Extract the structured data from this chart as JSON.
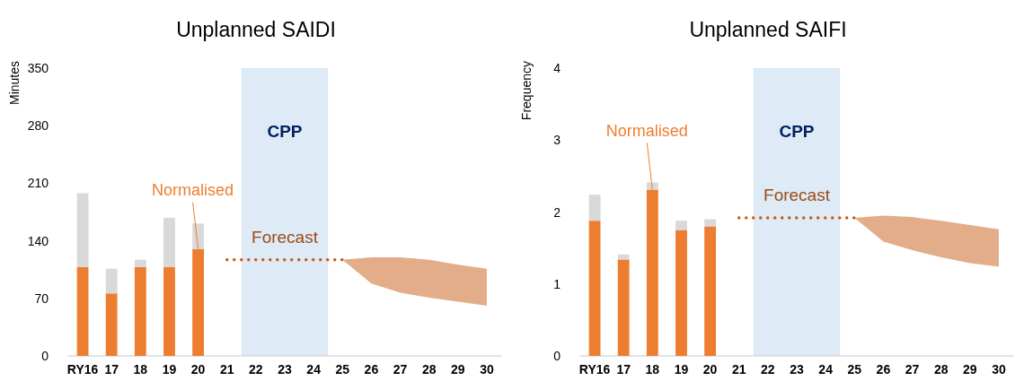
{
  "chart_data": [
    {
      "type": "bar",
      "title": "Unplanned SAIDI",
      "ylabel": "Minutes",
      "categories": [
        "RY16",
        "17",
        "18",
        "19",
        "20",
        "21",
        "22",
        "23",
        "24",
        "25",
        "26",
        "27",
        "28",
        "29",
        "30"
      ],
      "stacked": true,
      "ylim": [
        0,
        350
      ],
      "yticks": [
        0,
        70,
        140,
        210,
        280,
        350
      ],
      "grid": false,
      "series": [
        {
          "color": "#ed7d31",
          "values": [
            108,
            76,
            108,
            108,
            130,
            null,
            null,
            null,
            null,
            null,
            null,
            null,
            null,
            null,
            null
          ]
        },
        {
          "color": "#d9d9d9",
          "values": [
            90,
            30,
            9,
            60,
            31,
            null,
            null,
            null,
            null,
            null,
            null,
            null,
            null,
            null,
            null
          ]
        },
        {
          "type": "line",
          "name": "Forecast",
          "color": "#c55a11",
          "line_style": "dotted",
          "values": [
            null,
            null,
            null,
            null,
            null,
            117,
            117,
            117,
            117,
            117,
            null,
            null,
            null,
            null,
            null
          ],
          "lower": [
            null,
            null,
            null,
            null,
            null,
            null,
            null,
            null,
            null,
            117,
            88,
            77,
            71,
            66,
            61
          ],
          "upper": [
            null,
            null,
            null,
            null,
            null,
            null,
            null,
            null,
            null,
            117,
            120,
            120,
            117,
            111,
            106
          ]
        }
      ],
      "bands": [
        {
          "axis": "x",
          "from": "22",
          "to": "24",
          "label": "CPP",
          "color": "#deeaf6"
        }
      ],
      "annotations": [
        {
          "text": "Normalised",
          "x": "20",
          "y": 130
        }
      ]
    },
    {
      "type": "bar",
      "title": "Unplanned SAIFI",
      "ylabel": "Frequency",
      "categories": [
        "RY16",
        "17",
        "18",
        "19",
        "20",
        "21",
        "22",
        "23",
        "24",
        "25",
        "26",
        "27",
        "28",
        "29",
        "30"
      ],
      "stacked": true,
      "ylim": [
        0,
        4
      ],
      "yticks": [
        0,
        1,
        2,
        3,
        4
      ],
      "grid": false,
      "series": [
        {
          "color": "#ed7d31",
          "values": [
            1.88,
            1.34,
            2.31,
            1.75,
            1.8,
            null,
            null,
            null,
            null,
            null,
            null,
            null,
            null,
            null,
            null
          ]
        },
        {
          "color": "#d9d9d9",
          "values": [
            0.36,
            0.07,
            0.1,
            0.13,
            0.1,
            null,
            null,
            null,
            null,
            null,
            null,
            null,
            null,
            null,
            null
          ]
        },
        {
          "type": "line",
          "name": "Forecast",
          "color": "#c55a11",
          "line_style": "dotted",
          "values": [
            null,
            null,
            null,
            null,
            null,
            1.92,
            1.92,
            1.92,
            1.92,
            1.92,
            null,
            null,
            null,
            null,
            null
          ],
          "lower": [
            null,
            null,
            null,
            null,
            null,
            null,
            null,
            null,
            null,
            1.92,
            1.59,
            1.47,
            1.37,
            1.29,
            1.24
          ],
          "upper": [
            null,
            null,
            null,
            null,
            null,
            null,
            null,
            null,
            null,
            1.92,
            1.95,
            1.93,
            1.88,
            1.82,
            1.76
          ]
        }
      ],
      "bands": [
        {
          "axis": "x",
          "from": "22",
          "to": "24",
          "label": "CPP",
          "color": "#deeaf6"
        }
      ],
      "annotations": [
        {
          "text": "Normalised",
          "x": "18",
          "y": 2.31
        }
      ]
    }
  ]
}
